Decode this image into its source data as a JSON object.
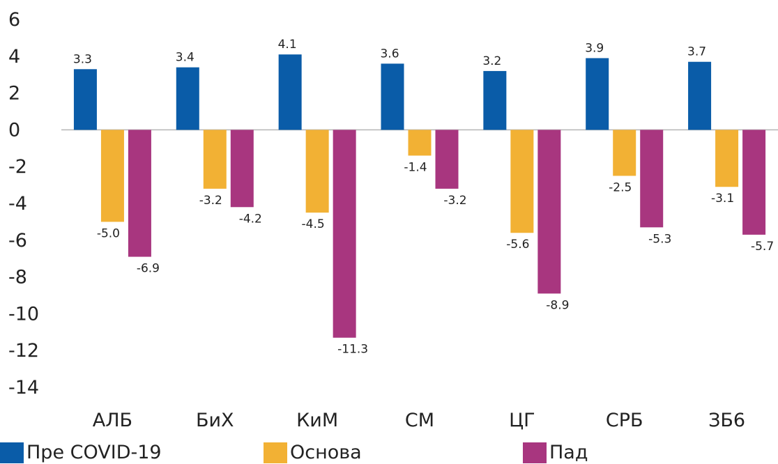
{
  "chart_data": {
    "type": "bar",
    "categories": [
      "АЛБ",
      "БиХ",
      "КиМ",
      "СМ",
      "ЦГ",
      "СРБ",
      "ЗБ6"
    ],
    "series": [
      {
        "name": "Пре COVID-19",
        "color": "#0a5ca8",
        "values": [
          3.3,
          3.4,
          4.1,
          3.6,
          3.2,
          3.9,
          3.7
        ],
        "labels": [
          "3.3",
          "3.4",
          "4.1",
          "3.6",
          "3.2",
          "3.9",
          "3.7"
        ]
      },
      {
        "name": "Основа",
        "color": "#f2b134",
        "values": [
          -5.0,
          -3.2,
          -4.5,
          -1.4,
          -5.6,
          -2.5,
          -3.1
        ],
        "labels": [
          "-5.0",
          "-3.2",
          "-4.5",
          "-1.4",
          "-5.6",
          "-2.5",
          "-3.1"
        ]
      },
      {
        "name": "Пад",
        "color": "#a8367f",
        "values": [
          -6.9,
          -4.2,
          -11.3,
          -3.2,
          -8.9,
          -5.3,
          -5.7
        ],
        "labels": [
          "-6.9",
          "-4.2",
          "-11.3",
          "-3.2",
          "-8.9",
          "-5.3",
          "-5.7"
        ]
      }
    ],
    "yticks": [
      6,
      4,
      2,
      0,
      -2,
      -4,
      -6,
      -8,
      -10,
      -12,
      -14
    ],
    "ylim": [
      -14,
      6
    ],
    "grid": false,
    "legend_position": "bottom",
    "title": "",
    "xlabel": "",
    "ylabel": ""
  }
}
